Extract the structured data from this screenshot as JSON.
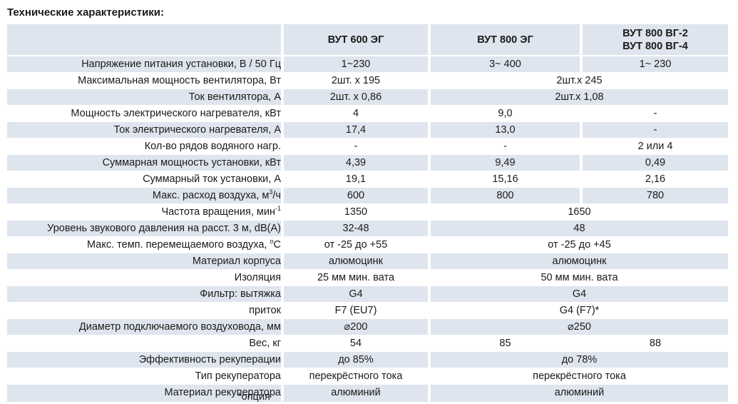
{
  "title": "Технические характеристики:",
  "columns": [
    "ВУТ 600 ЭГ",
    "ВУТ 800 ЭГ",
    "ВУТ 800 ВГ-2",
    "ВУТ 800 ВГ-4"
  ],
  "rows": [
    {
      "label": "Напряжение питания установки, В / 50 Гц",
      "c1": "1~230",
      "c2": "3~ 400",
      "c3": "1~ 230"
    },
    {
      "label": "Максимальная мощность вентилятора, Вт",
      "c1": "2шт. х 195",
      "c23": "2шт.х 245"
    },
    {
      "label": "Ток вентилятора, А",
      "c1": "2шт. х 0,86",
      "c23": "2шт.х 1,08"
    },
    {
      "label": "Мощность электрического нагревателя, кВт",
      "c1": "4",
      "c2": "9,0",
      "c3": "-"
    },
    {
      "label": "Ток электрического нагревателя, А",
      "c1": "17,4",
      "c2": "13,0",
      "c3": "-"
    },
    {
      "label": "Кол-во рядов водяного нагр.",
      "c1": "-",
      "c2": "-",
      "c3": "2 или 4"
    },
    {
      "label": "Суммарная мощность установки, кВт",
      "c1": "4,39",
      "c2": "9,49",
      "c3": "0,49"
    },
    {
      "label": "Суммарный ток установки, А",
      "c1": "19,1",
      "c2": "15,16",
      "c3": "2,16"
    },
    {
      "label": "Макс. расход воздуха, м",
      "label_sup": "3",
      "label_tail": "/ч",
      "c1": "600",
      "c2": "800",
      "c3": "780"
    },
    {
      "label": "Частота вращения,  мин",
      "label_sup": "-1",
      "label_tail": "",
      "c1": "1350",
      "c23": "1650"
    },
    {
      "label": "Уровень звукового давления на расст. 3 м, dB(A)",
      "c1": "32-48",
      "c23": "48"
    },
    {
      "label": "Макс. темп. перемещаемого воздуха, ",
      "label_sup": "o",
      "label_tail": "C",
      "c1": "от -25 до +55",
      "c23": "от -25 до +45"
    },
    {
      "label": "Материал корпуса",
      "c1": "алюмоцинк",
      "c23": "алюмоцинк"
    },
    {
      "label": "Изоляция",
      "c1": "25 мм мин. вата",
      "c23": "50 мм мин. вата"
    },
    {
      "label": "Фильтр: вытяжка",
      "c1": "G4",
      "c23": "G4"
    },
    {
      "label": "приток",
      "c1": "F7 (EU7)",
      "c23": "G4 (F7)*"
    },
    {
      "label": "Диаметр подключаемого воздуховода, мм",
      "c1": "⌀200",
      "c23": "⌀250"
    },
    {
      "label": "Вес, кг",
      "c1": "54",
      "c2": "85",
      "c3": "88"
    },
    {
      "label": "Эффективность рекуперации",
      "c1": "до 85%",
      "c23": "до 78%"
    },
    {
      "label": "Тип рекуператора",
      "c1": "перекрёстного тока",
      "c23": "перекрёстного тока"
    },
    {
      "label": "Материал рекуператора",
      "c1": "алюминий",
      "c23": "алюминий"
    }
  ],
  "footnote": "*опция"
}
